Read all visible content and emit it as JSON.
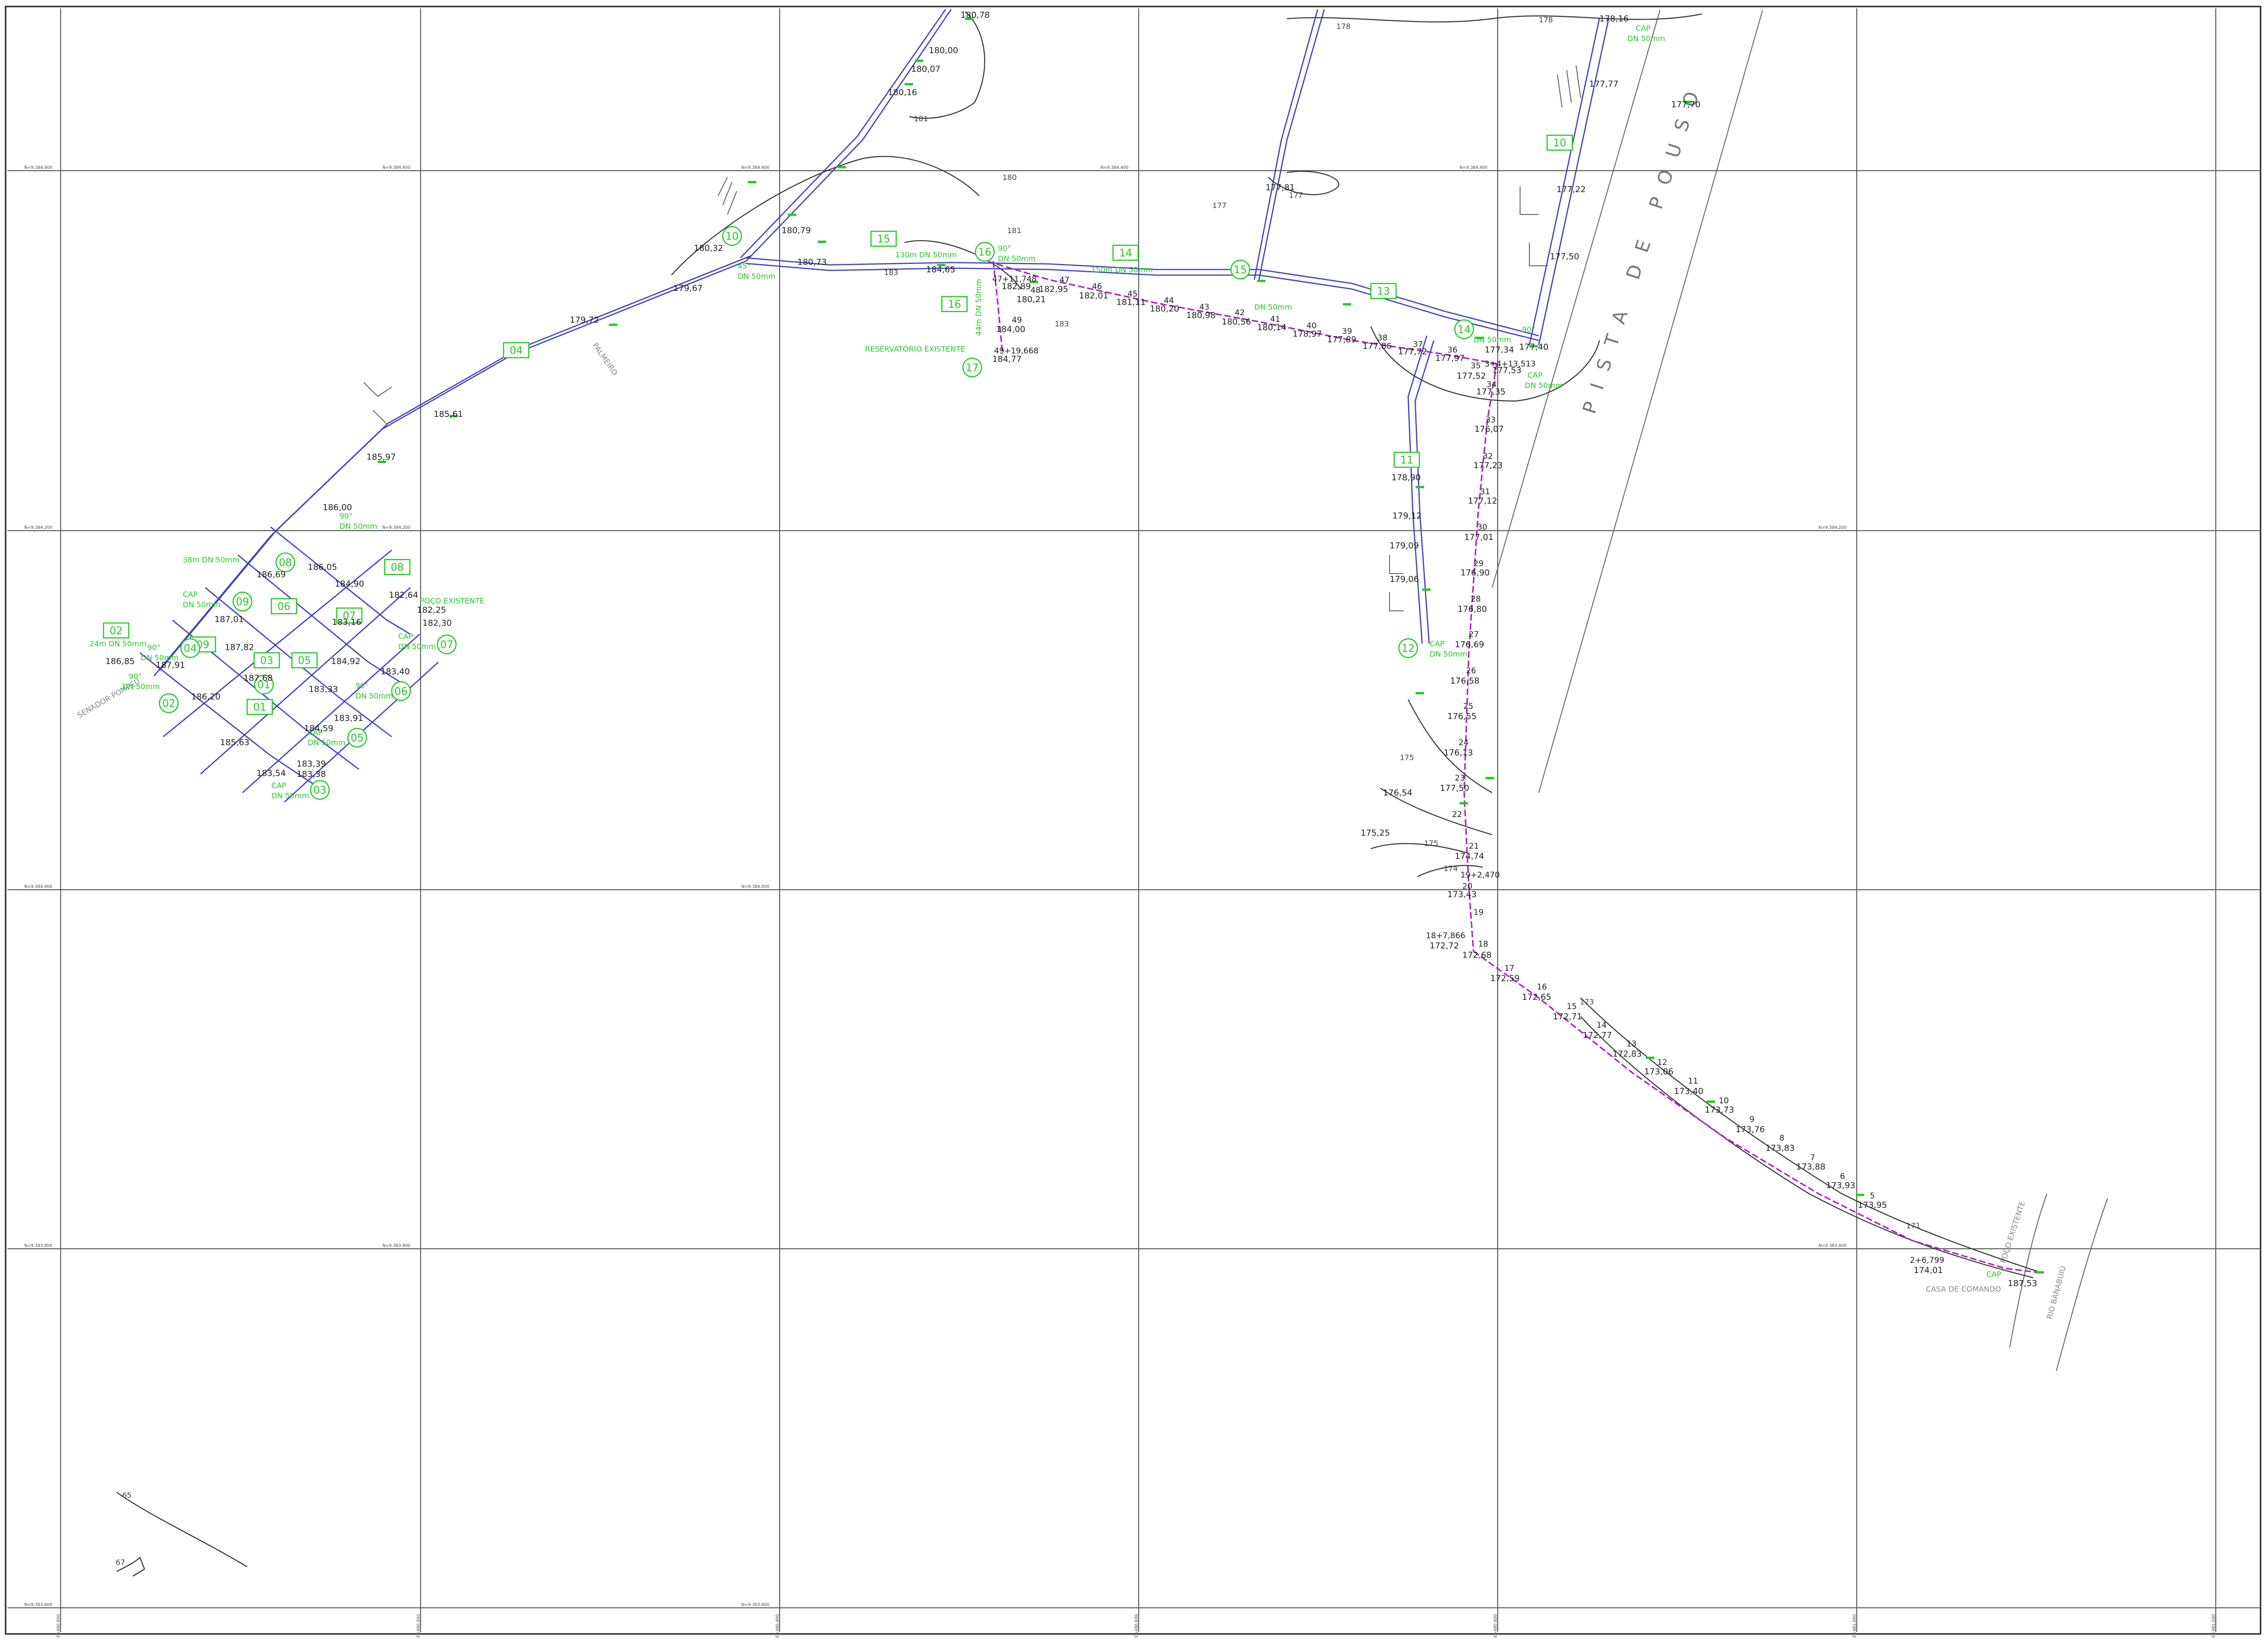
{
  "map": {
    "labels": {
      "runway": "PISTA DE POUSO",
      "reservoir": "RESERVATÓRIO EXISTENTE",
      "command_house": "CASA DE COMANDO",
      "existing_well": "POÇO EXISTENTE",
      "existing_poco_left": "POÇO EXISTENTE",
      "river": "RIO BANABUIÚ",
      "street_left": "SENADOR POMPEU",
      "street_mid": "PALMEIRO"
    },
    "grid_labels": {
      "n_rows": [
        "N=9.384.400",
        "N=9.384.200",
        "N=9.384.000",
        "N=9.383.800",
        "N=9.383.600"
      ],
      "e_cols": [
        "E=480.000",
        "E=480.200",
        "E=480.400",
        "E=480.600",
        "E=480.800",
        "E=481.000",
        "E=481.200"
      ]
    },
    "tags": [
      "04",
      "15",
      "14",
      "13",
      "16",
      "11",
      "10",
      "02",
      "03",
      "05",
      "06",
      "07",
      "08",
      "01",
      "09"
    ],
    "nodes": [
      "10",
      "16",
      "15",
      "14",
      "17",
      "12",
      "02",
      "03",
      "05",
      "06",
      "07",
      "08",
      "09",
      "04",
      "01"
    ],
    "elevations": {
      "e1": "180,78",
      "e2": "180,00",
      "e3": "180,07",
      "e4": "180,16",
      "e5": "180,32",
      "e6": "180,79",
      "e7": "180,73",
      "e8": "179,72",
      "e9": "179,67",
      "e10": "184,65",
      "e11": "182,89",
      "e12": "182,95",
      "e13": "180,21",
      "e14": "184,00",
      "e15": "184,77",
      "e16": "182,01",
      "e17": "181,11",
      "e18": "180,20",
      "e19": "180,98",
      "e20": "180,56",
      "e21": "180,14",
      "e22": "178,97",
      "e23": "177,89",
      "e24": "177,86",
      "e25": "177,72",
      "e26": "177,97",
      "e27": "177,52",
      "e28": "177,34",
      "e29": "177,40",
      "e30": "177,53",
      "e31": "177,35",
      "e32": "177,22",
      "e33": "177,70",
      "e34": "177,50",
      "e35": "177,77",
      "e36": "177,81",
      "e37": "178,16",
      "e38": "176,07",
      "e39": "177,23",
      "e40": "177,12",
      "e41": "177,01",
      "e42": "176,90",
      "e43": "176,80",
      "e44": "176,69",
      "e45": "176,58",
      "e46": "176,55",
      "e47": "176,13",
      "e48": "177,50",
      "e49": "178,90",
      "e50": "179,12",
      "e51": "179,09",
      "e52": "179,06",
      "e53": "176,54",
      "e54": "175,25",
      "e55": "174,74",
      "e56": "173,43",
      "e57": "172,72",
      "e58": "172,68",
      "e59": "172,59",
      "e60": "172,65",
      "e61": "172,71",
      "e62": "172,77",
      "e63": "172,83",
      "e64": "173,06",
      "e65": "173,40",
      "e66": "173,73",
      "e67": "173,76",
      "e68": "173,83",
      "e69": "173,88",
      "e70": "173,93",
      "e71": "173,95",
      "e72": "174,01",
      "e73": "187,53",
      "e74": "186,85",
      "e75": "187,91",
      "e76": "187,82",
      "e77": "187,68",
      "e78": "185,63",
      "e79": "183,54",
      "e80": "183,39",
      "e81": "183,38",
      "e82": "183,91",
      "e83": "184,59",
      "e84": "183,40",
      "e85": "184,92",
      "e86": "183,16",
      "e87": "182,30",
      "e88": "182,25",
      "e89": "182,64",
      "e90": "184,90",
      "e91": "186,69",
      "e92": "186,00",
      "e93": "185,97",
      "e94": "186,05",
      "e95": "183,33",
      "e96": "186,20",
      "e97": "187,01",
      "e98": "185,61"
    },
    "stations": {
      "s1": "47+11,748",
      "s2": "49+19,668",
      "s3": "3+4+13,513",
      "s4": "19+2,470",
      "s5": "18+7,866",
      "s6": "2+6,799",
      "n48": "48",
      "n47": "47",
      "n46": "46",
      "n45": "45",
      "n44": "44",
      "n43": "43",
      "n42": "42",
      "n41": "41",
      "n40": "40",
      "n39": "39",
      "n38": "38",
      "n37": "37",
      "n36": "36",
      "n35": "35",
      "n34": "34",
      "n33": "33",
      "n32": "32",
      "n31": "31",
      "n30": "30",
      "n29": "29",
      "n28": "28",
      "n27": "27",
      "n26": "26",
      "n25": "25",
      "n24": "24",
      "n23": "23",
      "n22": "22",
      "n21": "21",
      "n20": "20",
      "n19": "19",
      "n18": "18",
      "n17": "17",
      "n16": "16",
      "n15": "15",
      "n14": "14",
      "n13": "13",
      "n12": "12",
      "n11": "11",
      "n10": "10",
      "n9": "9",
      "n8": "8",
      "n7": "7",
      "n6": "6",
      "n5": "5",
      "n49": "49"
    },
    "pipe_labels": {
      "p1": "130m DN 50mm",
      "p2": "150m DN 50mm",
      "p3": "90°",
      "p4": "DN 50mm",
      "p5": "45°",
      "p6": "DN 50mm",
      "p7": "CAP",
      "p8": "DN 50mm",
      "p9": "38m DN 50mm",
      "p10": "24m DN 50mm",
      "p11": "CAP",
      "p12": "DN 50mm",
      "p13": "90°",
      "p14": "DN 50mm",
      "p15": "90°",
      "p16": "DN 50mm",
      "p17": "CAP",
      "p18": "DN 50mm",
      "p19": "CAP",
      "p20": "DN 50mm",
      "p21": "90°",
      "p22": "DN 50mm",
      "p23": "CAP",
      "p24": "DN 50mm",
      "p25": "90°",
      "p26": "DN 50mm",
      "p27": "90°",
      "p28": "DN 50mm",
      "p29": "CAP",
      "p30": "DN 50mm",
      "p31": "CAP",
      "p32": "DN 50mm",
      "p33": "44m DN 50mm",
      "p34": "CAP",
      "p35": "DN 50mm"
    },
    "contour_labels": [
      "178",
      "178",
      "177",
      "177",
      "181",
      "181",
      "180",
      "183",
      "183",
      "175",
      "175",
      "174",
      "173",
      "171",
      "65",
      "67"
    ]
  }
}
